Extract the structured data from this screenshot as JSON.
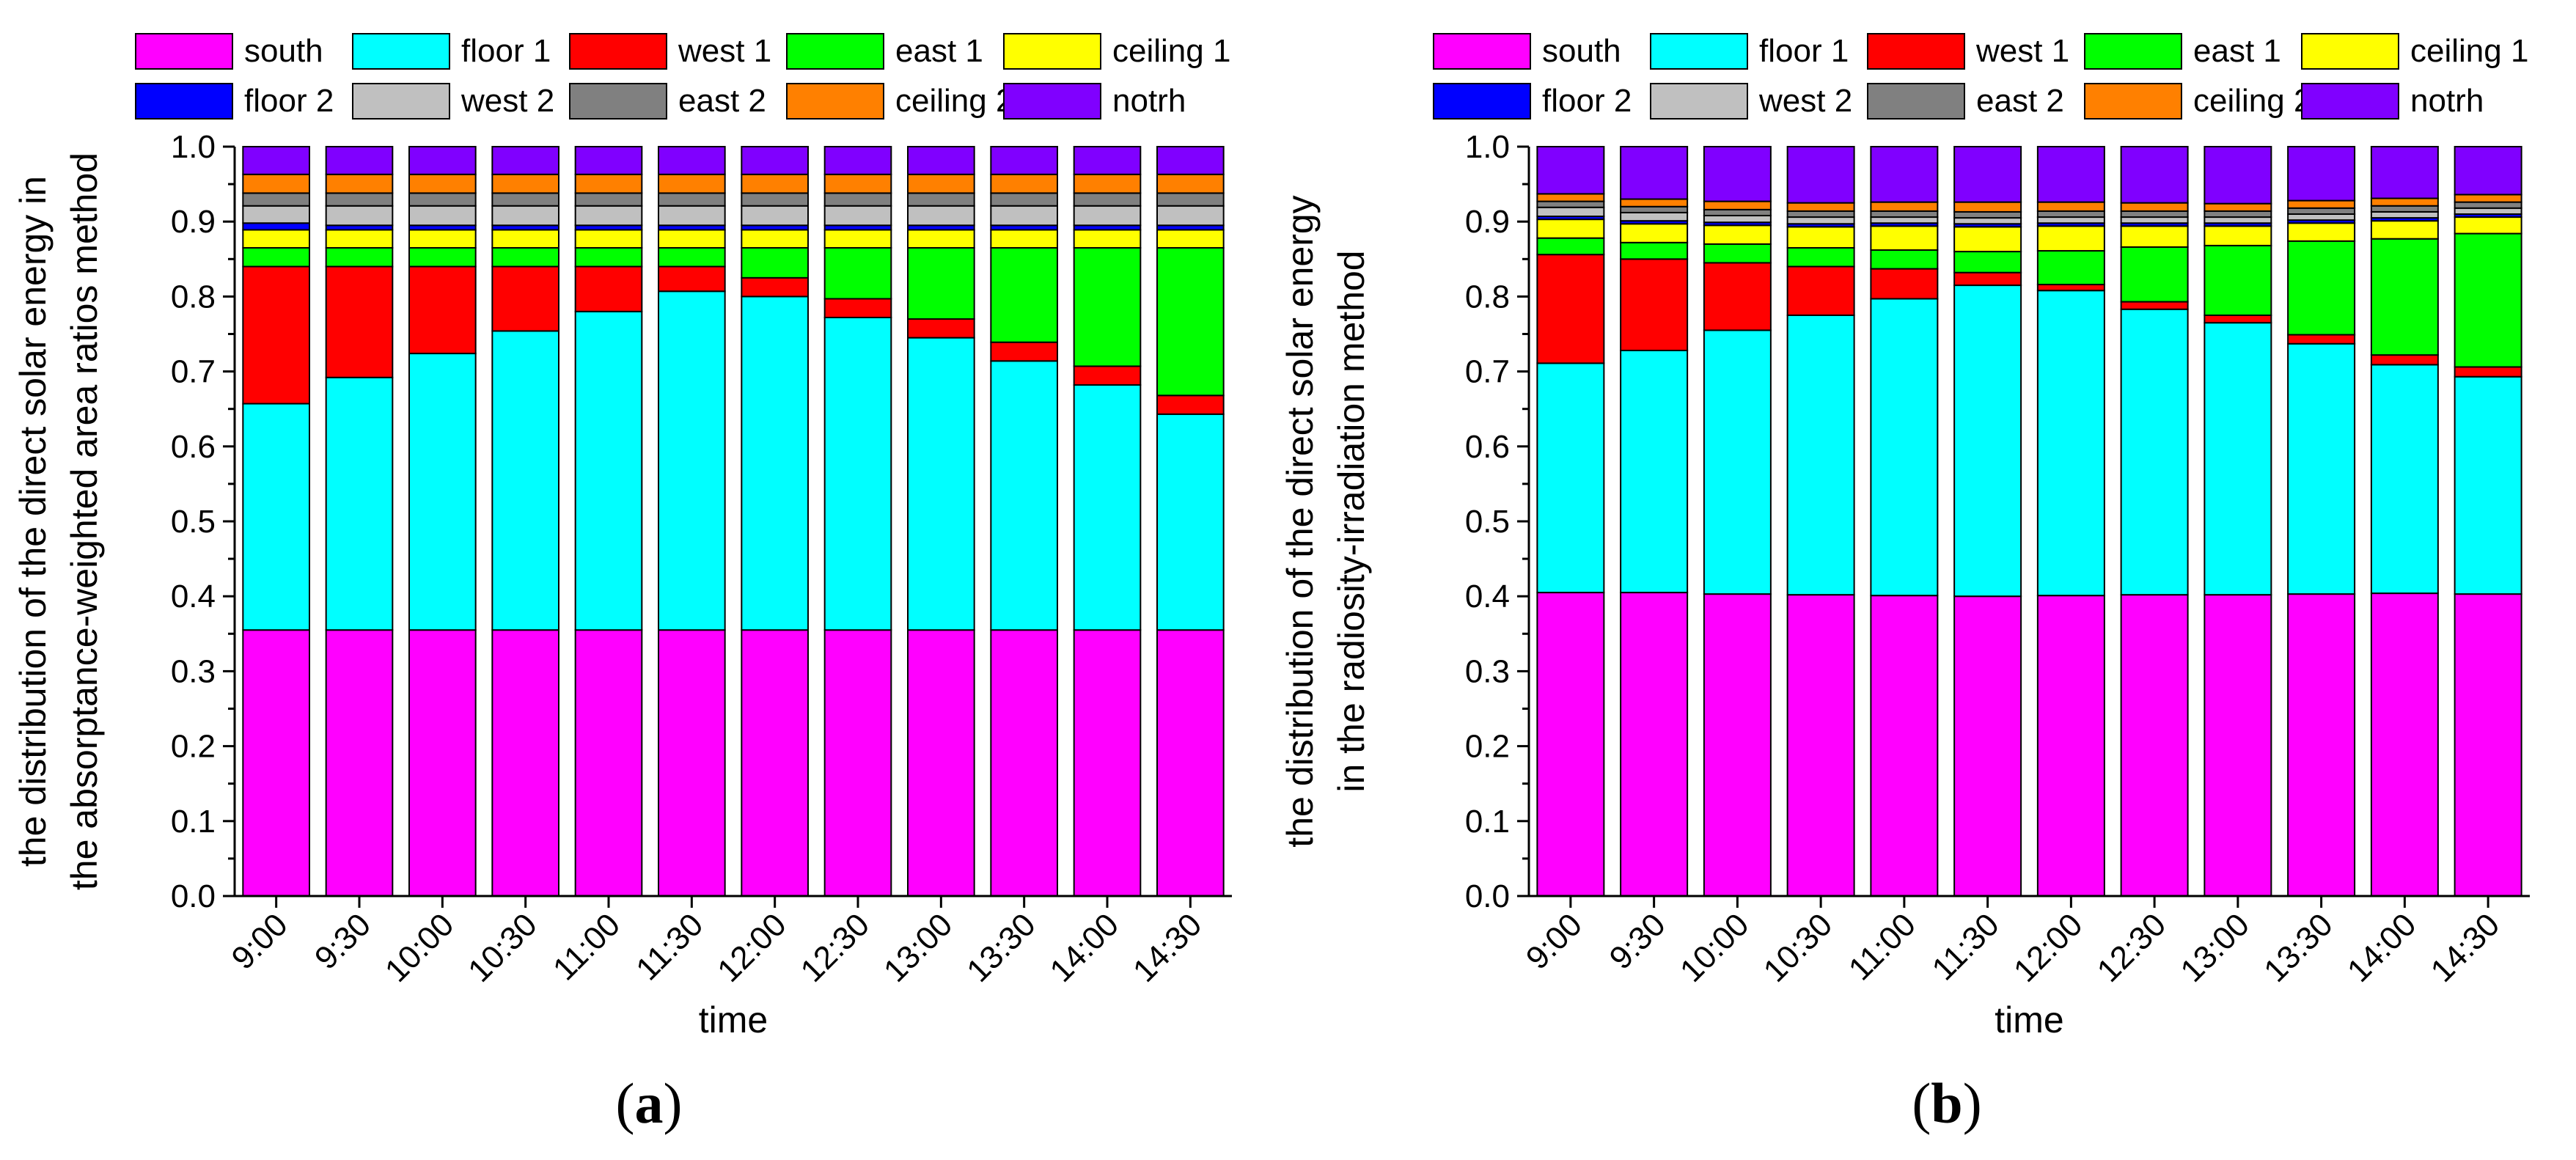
{
  "colors": {
    "south": "#FF00FF",
    "floor 1": "#00FFFF",
    "west 1": "#FF0000",
    "east  1": "#00FF00",
    "ceiling 1": "#FFFF00",
    "floor 2": "#0000FF",
    "west 2": "#C0C0C0",
    "east 2": "#808080",
    "ceiling 2": "#FF8000",
    "notrh": "#8000FF"
  },
  "captions": {
    "a_open": "(",
    "a_letter": "a",
    "a_close": ")",
    "b_open": "(",
    "b_letter": "b",
    "b_close": ")"
  },
  "chart_data": [
    {
      "id": "a",
      "type": "bar",
      "stacked": true,
      "title": "",
      "xlabel": "time",
      "ylabel_lines": [
        "the distribution of the direct solar energy in",
        "the absorptance-weighted area ratios method"
      ],
      "ylim": [
        0,
        1.0
      ],
      "yticks": [
        "0.0",
        "0.1",
        "0.2",
        "0.3",
        "0.4",
        "0.5",
        "0.6",
        "0.7",
        "0.8",
        "0.9",
        "1.0"
      ],
      "legend": [
        "south",
        "floor 1",
        "west 1",
        "east  1",
        "ceiling 1",
        "floor 2",
        "west 2",
        "east 2",
        "ceiling 2",
        "notrh"
      ],
      "legend_position": "top",
      "categories": [
        "9:00",
        "9:30",
        "10:00",
        "10:30",
        "11:00",
        "11:30",
        "12:00",
        "12:30",
        "13:00",
        "13:30",
        "14:00",
        "14:30"
      ],
      "series": [
        {
          "name": "south",
          "values": [
            0.355,
            0.355,
            0.355,
            0.355,
            0.355,
            0.355,
            0.355,
            0.355,
            0.355,
            0.355,
            0.355,
            0.355
          ]
        },
        {
          "name": "floor 1",
          "values": [
            0.302,
            0.337,
            0.369,
            0.399,
            0.425,
            0.452,
            0.445,
            0.417,
            0.39,
            0.359,
            0.327,
            0.288
          ]
        },
        {
          "name": "west 1",
          "values": [
            0.183,
            0.148,
            0.116,
            0.086,
            0.06,
            0.033,
            0.025,
            0.025,
            0.025,
            0.025,
            0.025,
            0.025
          ]
        },
        {
          "name": "east  1",
          "values": [
            0.025,
            0.025,
            0.025,
            0.025,
            0.025,
            0.025,
            0.04,
            0.068,
            0.095,
            0.126,
            0.158,
            0.197
          ]
        },
        {
          "name": "ceiling 1",
          "values": [
            0.024,
            0.024,
            0.024,
            0.024,
            0.024,
            0.024,
            0.024,
            0.024,
            0.024,
            0.024,
            0.024,
            0.024
          ]
        },
        {
          "name": "floor 2",
          "values": [
            0.009,
            0.006,
            0.006,
            0.006,
            0.006,
            0.006,
            0.006,
            0.006,
            0.006,
            0.006,
            0.006,
            0.006
          ]
        },
        {
          "name": "west 2",
          "values": [
            0.023,
            0.026,
            0.026,
            0.026,
            0.026,
            0.026,
            0.026,
            0.026,
            0.026,
            0.026,
            0.026,
            0.026
          ]
        },
        {
          "name": "east 2",
          "values": [
            0.017,
            0.017,
            0.017,
            0.017,
            0.017,
            0.017,
            0.017,
            0.017,
            0.017,
            0.017,
            0.017,
            0.017
          ]
        },
        {
          "name": "ceiling 2",
          "values": [
            0.025,
            0.025,
            0.025,
            0.025,
            0.025,
            0.025,
            0.025,
            0.025,
            0.025,
            0.025,
            0.025,
            0.025
          ]
        },
        {
          "name": "notrh",
          "values": [
            0.037,
            0.037,
            0.037,
            0.037,
            0.037,
            0.037,
            0.037,
            0.037,
            0.037,
            0.037,
            0.037,
            0.037
          ]
        }
      ]
    },
    {
      "id": "b",
      "type": "bar",
      "stacked": true,
      "title": "",
      "xlabel": "time",
      "ylabel_lines": [
        "the distribution of the direct solar energy",
        "in the radiosity-irradiation method"
      ],
      "ylim": [
        0,
        1.0
      ],
      "yticks": [
        "0.0",
        "0.1",
        "0.2",
        "0.3",
        "0.4",
        "0.5",
        "0.6",
        "0.7",
        "0.8",
        "0.9",
        "1.0"
      ],
      "legend": [
        "south",
        "floor 1",
        "west 1",
        "east  1",
        "ceiling 1",
        "floor 2",
        "west 2",
        "east 2",
        "ceiling 2",
        "notrh"
      ],
      "legend_position": "top",
      "categories": [
        "9:00",
        "9:30",
        "10:00",
        "10:30",
        "11:00",
        "11:30",
        "12:00",
        "12:30",
        "13:00",
        "13:30",
        "14:00",
        "14:30"
      ],
      "series": [
        {
          "name": "south",
          "values": [
            0.405,
            0.405,
            0.403,
            0.402,
            0.401,
            0.4,
            0.401,
            0.402,
            0.402,
            0.403,
            0.404,
            0.403
          ]
        },
        {
          "name": "floor 1",
          "values": [
            0.306,
            0.323,
            0.352,
            0.373,
            0.396,
            0.415,
            0.407,
            0.381,
            0.363,
            0.334,
            0.305,
            0.29
          ]
        },
        {
          "name": "west 1",
          "values": [
            0.145,
            0.122,
            0.09,
            0.065,
            0.04,
            0.017,
            0.008,
            0.01,
            0.01,
            0.012,
            0.013,
            0.013
          ]
        },
        {
          "name": "east  1",
          "values": [
            0.022,
            0.022,
            0.025,
            0.025,
            0.025,
            0.028,
            0.045,
            0.073,
            0.093,
            0.125,
            0.155,
            0.178
          ]
        },
        {
          "name": "ceiling 1",
          "values": [
            0.025,
            0.025,
            0.025,
            0.028,
            0.032,
            0.033,
            0.033,
            0.028,
            0.026,
            0.024,
            0.024,
            0.022
          ]
        },
        {
          "name": "floor 2",
          "values": [
            0.004,
            0.004,
            0.004,
            0.004,
            0.004,
            0.004,
            0.004,
            0.004,
            0.004,
            0.004,
            0.004,
            0.004
          ]
        },
        {
          "name": "west 2",
          "values": [
            0.012,
            0.011,
            0.009,
            0.009,
            0.008,
            0.008,
            0.008,
            0.008,
            0.008,
            0.008,
            0.008,
            0.008
          ]
        },
        {
          "name": "east 2",
          "values": [
            0.008,
            0.008,
            0.008,
            0.008,
            0.008,
            0.008,
            0.008,
            0.008,
            0.008,
            0.008,
            0.008,
            0.008
          ]
        },
        {
          "name": "ceiling 2",
          "values": [
            0.01,
            0.01,
            0.011,
            0.011,
            0.012,
            0.013,
            0.012,
            0.011,
            0.01,
            0.01,
            0.01,
            0.01
          ]
        },
        {
          "name": "notrh",
          "values": [
            0.063,
            0.07,
            0.073,
            0.075,
            0.074,
            0.074,
            0.074,
            0.075,
            0.076,
            0.072,
            0.069,
            0.064
          ]
        }
      ]
    }
  ]
}
